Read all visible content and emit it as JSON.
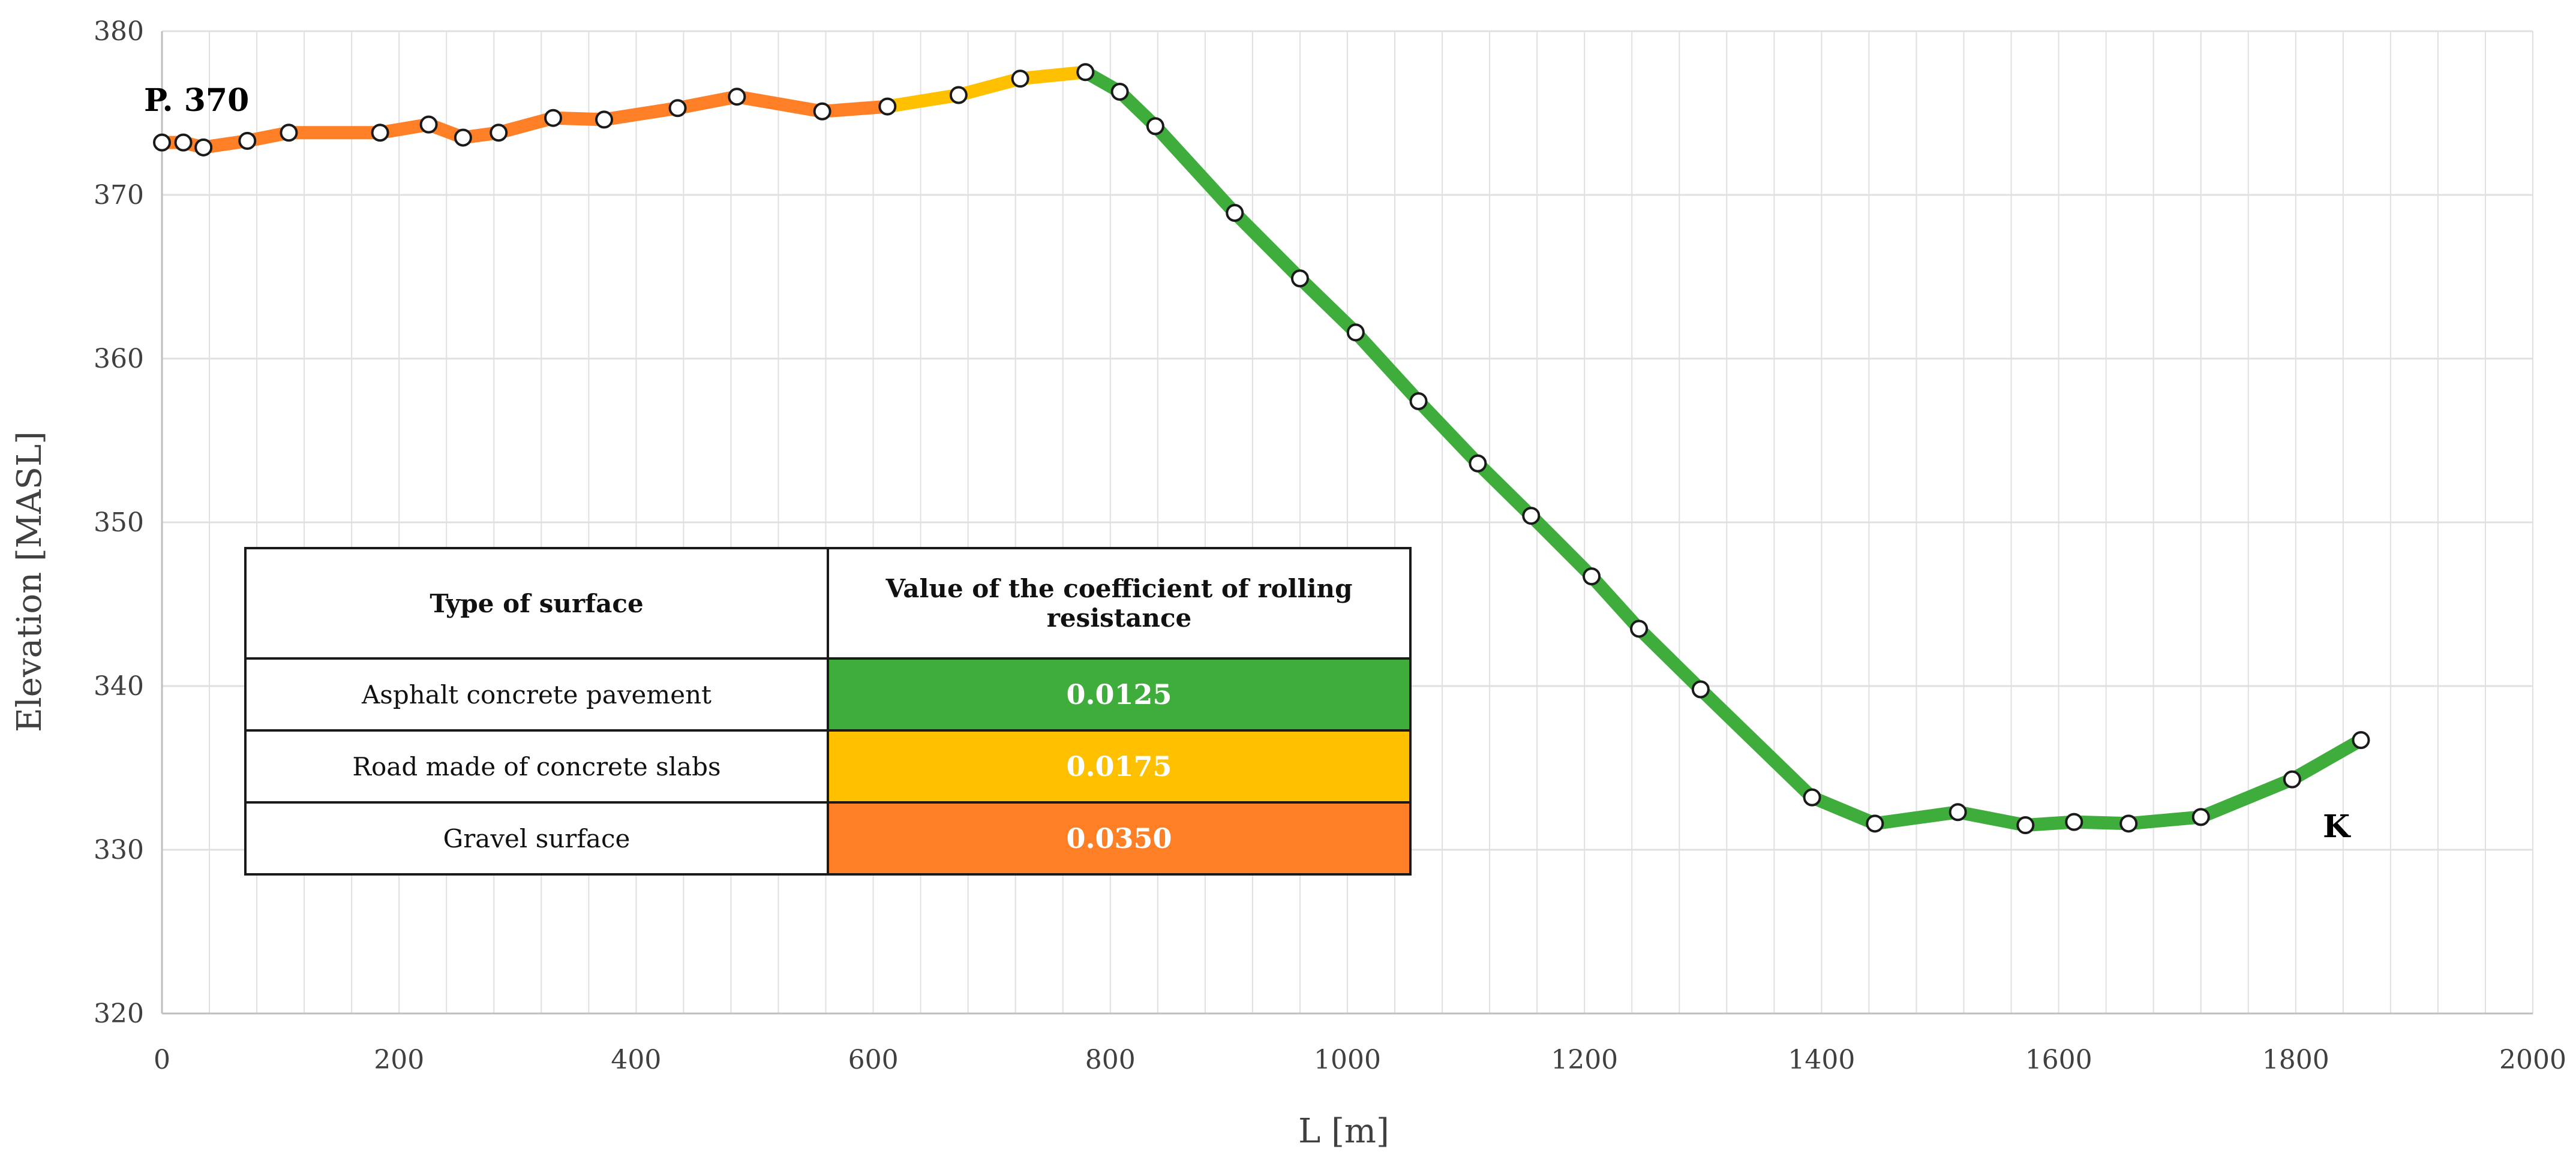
{
  "chart_data": {
    "type": "line",
    "xlabel": "L [m]",
    "ylabel": "Elevation [MASL]",
    "xlim": [
      0,
      2000
    ],
    "ylim": [
      320,
      380
    ],
    "xticks": [
      "0",
      "200",
      "400",
      "600",
      "800",
      "1000",
      "1200",
      "1400",
      "1600",
      "1800",
      "2000"
    ],
    "yticks": [
      "320",
      "330",
      "340",
      "350",
      "360",
      "370",
      "380"
    ],
    "grid": true,
    "start_label": "P. 370",
    "end_label": "K",
    "colors": {
      "gravel": "#FF7F27",
      "concrete_slabs": "#FFC000",
      "asphalt": "#3FAD3C",
      "grid": "#e0e0e0"
    },
    "segments": [
      {
        "surface": "gravel",
        "points": [
          [
            0,
            373.2
          ],
          [
            18,
            373.2
          ],
          [
            35,
            372.9
          ],
          [
            72,
            373.3
          ],
          [
            107,
            373.8
          ],
          [
            184,
            373.8
          ],
          [
            225,
            374.3
          ],
          [
            254,
            373.5
          ],
          [
            284,
            373.8
          ],
          [
            330,
            374.7
          ],
          [
            373,
            374.6
          ],
          [
            435,
            375.3
          ],
          [
            485,
            376.0
          ],
          [
            557,
            375.1
          ],
          [
            612,
            375.4
          ]
        ]
      },
      {
        "surface": "concrete_slabs",
        "points": [
          [
            612,
            375.4
          ],
          [
            672,
            376.1
          ],
          [
            724,
            377.1
          ],
          [
            779,
            377.5
          ]
        ]
      },
      {
        "surface": "asphalt",
        "points": [
          [
            779,
            377.5
          ],
          [
            808,
            376.3
          ],
          [
            838,
            374.2
          ],
          [
            905,
            368.9
          ],
          [
            960,
            364.9
          ],
          [
            1007,
            361.6
          ],
          [
            1060,
            357.4
          ],
          [
            1110,
            353.6
          ],
          [
            1155,
            350.4
          ],
          [
            1206,
            346.7
          ],
          [
            1246,
            343.5
          ],
          [
            1298,
            339.8
          ],
          [
            1392,
            333.2
          ],
          [
            1445,
            331.6
          ],
          [
            1515,
            332.3
          ],
          [
            1572,
            331.5
          ],
          [
            1613,
            331.7
          ],
          [
            1659,
            331.6
          ],
          [
            1720,
            332.0
          ],
          [
            1797,
            334.3
          ],
          [
            1855,
            336.7
          ]
        ]
      }
    ],
    "table": {
      "headers": [
        "Type of surface",
        "Value of the coefficient of rolling resistance"
      ],
      "rows": [
        {
          "surface": "Asphalt concrete pavement",
          "value": "0.0125",
          "color": "#3FAD3C"
        },
        {
          "surface": "Road made of concrete slabs",
          "value": "0.0175",
          "color": "#FFC000"
        },
        {
          "surface": "Gravel surface",
          "value": "0.0350",
          "color": "#FF7F27"
        }
      ]
    }
  }
}
